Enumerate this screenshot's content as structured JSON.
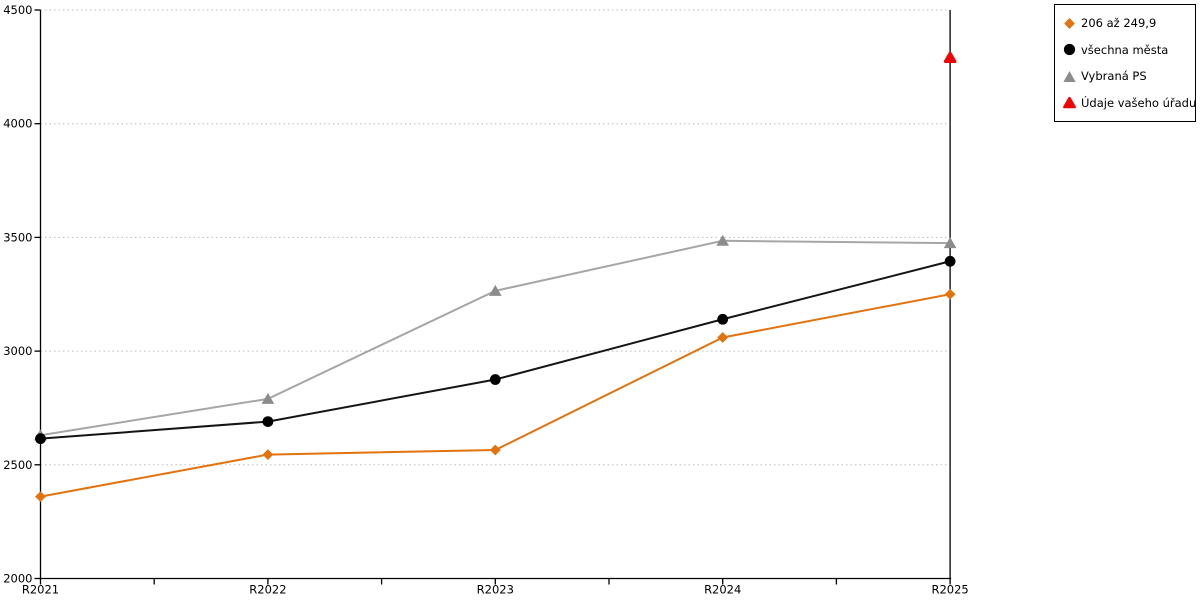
{
  "chart_data": {
    "type": "line",
    "title": "",
    "xlabel": "",
    "ylabel": "",
    "categories": [
      "R2021",
      "R2022",
      "R2023",
      "R2024",
      "R2025"
    ],
    "y_ticks": [
      2000,
      2500,
      3000,
      3500,
      4000,
      4500
    ],
    "ylim": [
      2000,
      4500
    ],
    "grid": "horizontal-dotted",
    "grid_color": "#bdbdbd",
    "axis_color": "#000000",
    "legend_position": "outside-top-right",
    "series": [
      {
        "name": "206 až 249,9",
        "marker": "diamond",
        "color": "#e2730e",
        "marker_color": "#e2730e",
        "values": [
          2360,
          2545,
          2565,
          3060,
          3250
        ]
      },
      {
        "name": "všechna města",
        "marker": "circle",
        "color": "#141414",
        "marker_color": "#000000",
        "values": [
          2615,
          2690,
          2875,
          3140,
          3395
        ]
      },
      {
        "name": "Vybraná PS",
        "marker": "triangle",
        "color": "#a6a6a6",
        "marker_color": "#8c8c8c",
        "values": [
          2630,
          2790,
          3265,
          3485,
          3475
        ]
      },
      {
        "name": "Údaje vašeho úřadu",
        "marker": "triangle-rounded",
        "color": "#ee0505",
        "marker_color": "#ee0505",
        "values": [
          null,
          null,
          null,
          null,
          4290
        ]
      }
    ]
  }
}
